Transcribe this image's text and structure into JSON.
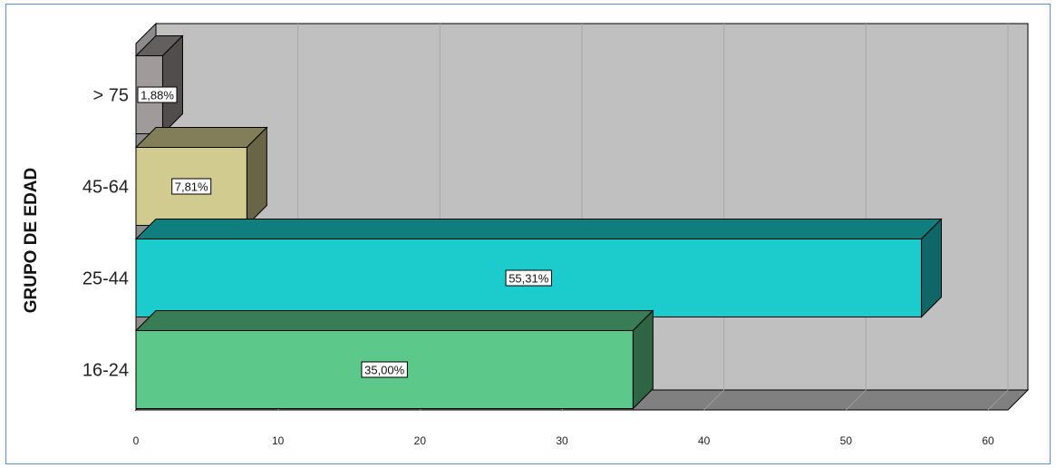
{
  "chart_data": {
    "type": "bar",
    "orientation": "horizontal",
    "three_d": true,
    "categories": [
      "16-24",
      "25-44",
      "45-64",
      "> 75"
    ],
    "values": [
      35.0,
      55.31,
      7.81,
      1.88
    ],
    "data_labels": [
      "35,00%",
      "55,31%",
      "7,81%",
      "1,88%"
    ],
    "title": "",
    "xlabel": "",
    "ylabel": "GRUPO DE EDAD",
    "xlim": [
      0,
      60
    ],
    "xticks": [
      "0",
      "10",
      "20",
      "30",
      "40",
      "50",
      "60"
    ],
    "grid": true,
    "colors": {
      "16-24": "#5cc98a",
      "25-44": "#1ccccc",
      "45-64": "#d2cb8f",
      "> 75": "#a19a9a",
      "plot_back": "#c0c0c0",
      "floor": "#808080",
      "left_wall": "#8c8c8c"
    }
  }
}
